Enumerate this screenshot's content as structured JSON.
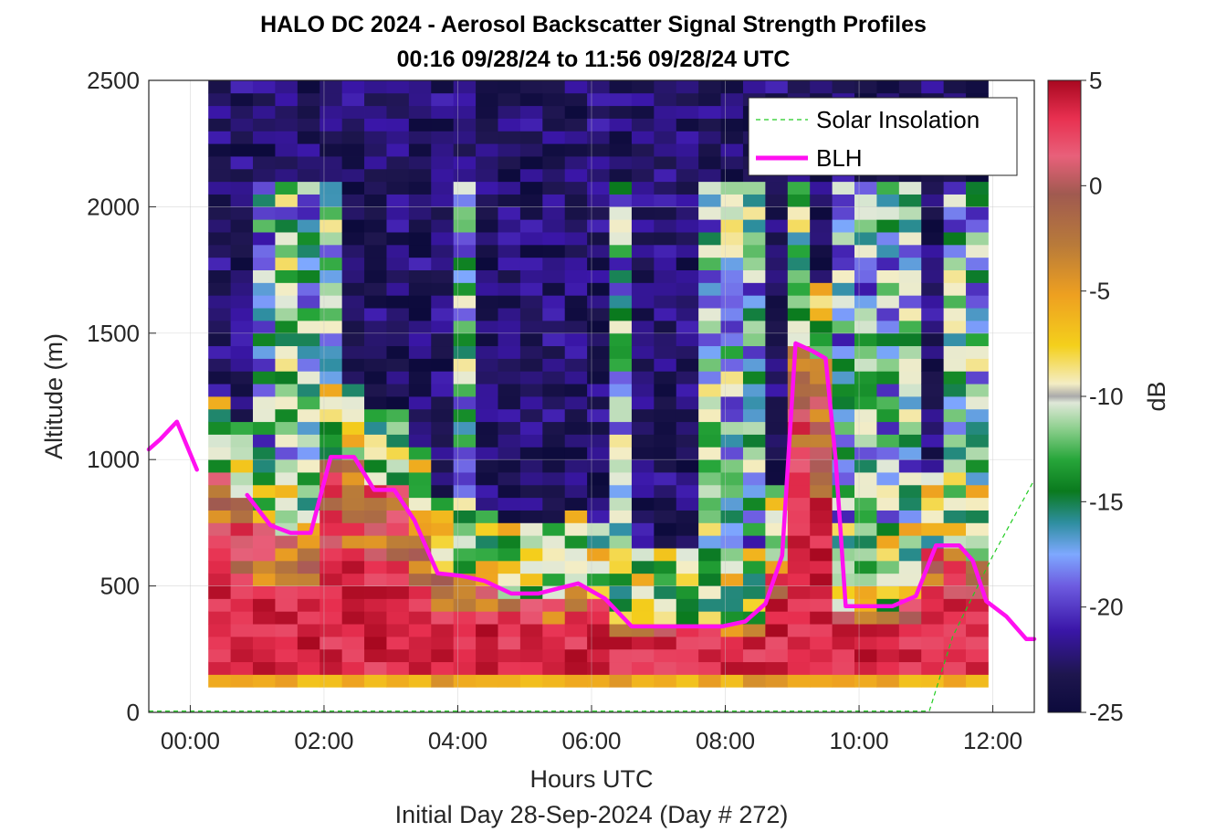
{
  "title_line1": "HALO DC 2024 - Aerosol Backscatter Signal Strength Profiles",
  "title_line2": "00:16 09/28/24 to 11:56 09/28/24  UTC",
  "xlabel": "Hours UTC",
  "ylabel": "Altitude (m)",
  "footer": "Initial Day 28-Sep-2024 (Day # 272)",
  "colorbar_label": "dB",
  "legend": {
    "solar": "Solar Insolation",
    "blh": "BLH"
  },
  "colors": {
    "blh": "#ff10f0",
    "solar": "#22cc22"
  },
  "chart_data": {
    "type": "heatmap",
    "x_units": "hours UTC",
    "xlim": [
      -0.62,
      12.62
    ],
    "ylim": [
      0,
      2500
    ],
    "clim": [
      -25,
      5
    ],
    "grid": true,
    "legend_position": "top-right",
    "x_ticks": [
      0,
      2,
      4,
      6,
      8,
      10,
      12
    ],
    "x_tick_labels": [
      "00:00",
      "02:00",
      "04:00",
      "06:00",
      "08:00",
      "10:00",
      "12:00"
    ],
    "y_ticks": [
      0,
      500,
      1000,
      1500,
      2000,
      2500
    ],
    "y_tick_labels": [
      "0",
      "500",
      "1000",
      "1500",
      "2000",
      "2500"
    ],
    "colorbar_ticks": [
      5,
      0,
      -5,
      -10,
      -15,
      -20,
      -25
    ],
    "colorbar_tick_labels": [
      "5",
      "0",
      "-5",
      "-10",
      "-15",
      "-20",
      "-25"
    ],
    "heatmap": {
      "x_start": 0.27,
      "x_end": 11.93,
      "n_columns": 35,
      "y_bottom": 100,
      "y_top": 2500,
      "row_height": 50
    },
    "blh_series": {
      "name": "BLH",
      "x": [
        -0.62,
        -0.45,
        -0.2,
        0.1,
        0.45,
        0.85,
        1.2,
        1.5,
        1.8,
        2.1,
        2.45,
        2.75,
        3.05,
        3.35,
        3.7,
        4.05,
        4.4,
        4.8,
        5.2,
        5.8,
        6.2,
        6.6,
        7.1,
        7.6,
        7.95,
        8.3,
        8.6,
        8.85,
        9.05,
        9.3,
        9.5,
        9.65,
        9.8,
        10.1,
        10.5,
        10.85,
        11.15,
        11.5,
        11.7,
        11.9,
        12.2,
        12.5,
        12.62
      ],
      "y": [
        1040,
        1080,
        1150,
        960,
        null,
        860,
        740,
        710,
        710,
        1010,
        1010,
        880,
        880,
        760,
        550,
        540,
        520,
        470,
        470,
        510,
        450,
        340,
        340,
        340,
        340,
        360,
        430,
        620,
        1460,
        1430,
        1400,
        1000,
        420,
        420,
        420,
        460,
        660,
        660,
        600,
        440,
        380,
        290,
        290
      ]
    },
    "solar_series": {
      "name": "Solar Insolation",
      "x": [
        -0.62,
        11.05,
        11.4,
        12.0,
        12.62
      ],
      "y": [
        5,
        5,
        300,
        620,
        920
      ]
    }
  }
}
